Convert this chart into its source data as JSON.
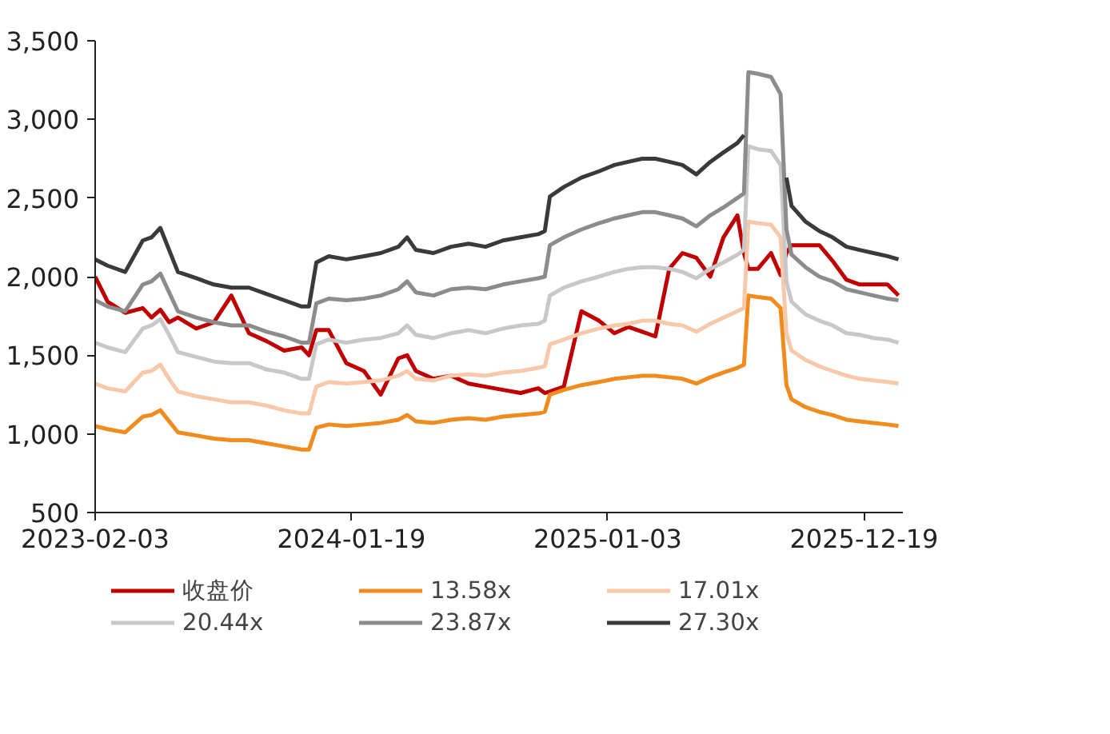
{
  "chart_data": {
    "type": "line",
    "x": [
      "2023-02-03",
      "2023-02-20",
      "2023-03-16",
      "2023-04-09",
      "2023-04-21",
      "2023-05-03",
      "2023-05-15",
      "2023-05-27",
      "2023-06-21",
      "2023-07-15",
      "2023-08-08",
      "2023-09-01",
      "2023-09-25",
      "2023-10-19",
      "2023-11-12",
      "2023-11-22",
      "2023-12-02",
      "2023-12-19",
      "2024-01-12",
      "2024-02-05",
      "2024-02-28",
      "2024-03-23",
      "2024-04-04",
      "2024-04-16",
      "2024-05-10",
      "2024-06-03",
      "2024-06-27",
      "2024-07-20",
      "2024-08-13",
      "2024-09-06",
      "2024-09-30",
      "2024-10-09",
      "2024-10-16",
      "2024-11-04",
      "2024-11-28",
      "2024-12-22",
      "2025-01-12",
      "2025-01-31",
      "2025-02-19",
      "2025-03-09",
      "2025-03-28",
      "2025-04-15",
      "2025-05-04",
      "2025-05-23",
      "2025-06-10",
      "2025-06-29",
      "2025-07-08",
      "2025-07-14",
      "2025-07-27",
      "2025-08-14",
      "2025-08-27",
      "2025-09-04",
      "2025-09-11",
      "2025-09-30",
      "2025-10-19",
      "2025-11-06",
      "2025-11-25",
      "2025-12-13",
      "2026-01-01",
      "2026-01-20",
      "2026-02-04"
    ],
    "series": [
      {
        "name": "收盘价",
        "color": "#c00000",
        "values": [
          2000,
          1840,
          1770,
          1800,
          1740,
          1790,
          1710,
          1740,
          1670,
          1710,
          1880,
          1640,
          1590,
          1530,
          1550,
          1500,
          1660,
          1660,
          1450,
          1400,
          1250,
          1480,
          1500,
          1400,
          1350,
          1370,
          1320,
          1300,
          1280,
          1260,
          1290,
          1260,
          1270,
          1300,
          1780,
          1720,
          1640,
          1680,
          1650,
          1620,
          2050,
          2150,
          2120,
          2000,
          2250,
          2390,
          2150,
          2050,
          2050,
          2150,
          2010,
          2150,
          2200,
          2200,
          2200,
          2100,
          1980,
          1950,
          1950,
          1950,
          1880
        ]
      },
      {
        "name": "13.58x",
        "color": "#f08c1e",
        "values": [
          1050,
          1030,
          1010,
          1110,
          1120,
          1150,
          1080,
          1010,
          990,
          970,
          960,
          960,
          940,
          920,
          900,
          900,
          1040,
          1060,
          1050,
          1060,
          1070,
          1090,
          1120,
          1080,
          1070,
          1090,
          1100,
          1090,
          1110,
          1120,
          1130,
          1140,
          1250,
          1280,
          1310,
          1330,
          1350,
          1360,
          1370,
          1370,
          1360,
          1350,
          1320,
          1360,
          1390,
          1420,
          1440,
          1880,
          1870,
          1860,
          1800,
          1310,
          1220,
          1170,
          1140,
          1120,
          1090,
          1080,
          1070,
          1060,
          1050
        ]
      },
      {
        "name": "17.01x",
        "color": "#f7c9aa",
        "values": [
          1320,
          1290,
          1270,
          1390,
          1400,
          1440,
          1350,
          1270,
          1240,
          1220,
          1200,
          1200,
          1180,
          1150,
          1130,
          1130,
          1300,
          1330,
          1320,
          1330,
          1340,
          1370,
          1400,
          1350,
          1340,
          1370,
          1380,
          1370,
          1390,
          1400,
          1420,
          1430,
          1570,
          1600,
          1640,
          1670,
          1690,
          1700,
          1720,
          1720,
          1700,
          1690,
          1650,
          1700,
          1740,
          1780,
          1800,
          2350,
          2340,
          2330,
          2250,
          1640,
          1530,
          1470,
          1430,
          1400,
          1370,
          1350,
          1340,
          1330,
          1320
        ]
      },
      {
        "name": "20.44x",
        "color": "#c8c8c8",
        "values": [
          1580,
          1550,
          1520,
          1670,
          1690,
          1730,
          1630,
          1520,
          1490,
          1460,
          1450,
          1450,
          1410,
          1390,
          1350,
          1350,
          1570,
          1600,
          1580,
          1600,
          1610,
          1640,
          1690,
          1630,
          1610,
          1640,
          1660,
          1640,
          1670,
          1690,
          1700,
          1720,
          1880,
          1930,
          1970,
          2000,
          2030,
          2050,
          2060,
          2060,
          2050,
          2030,
          1990,
          2050,
          2090,
          2140,
          2170,
          2830,
          2810,
          2800,
          2710,
          1970,
          1840,
          1760,
          1720,
          1690,
          1640,
          1630,
          1610,
          1600,
          1580
        ]
      },
      {
        "name": "23.87x",
        "color": "#8c8c8c",
        "values": [
          1850,
          1810,
          1780,
          1950,
          1970,
          2020,
          1900,
          1780,
          1740,
          1710,
          1690,
          1690,
          1650,
          1620,
          1580,
          1580,
          1830,
          1860,
          1850,
          1860,
          1880,
          1920,
          1970,
          1900,
          1880,
          1920,
          1930,
          1920,
          1950,
          1970,
          1990,
          2000,
          2200,
          2250,
          2300,
          2340,
          2370,
          2390,
          2410,
          2410,
          2390,
          2370,
          2320,
          2390,
          2440,
          2500,
          2530,
          3300,
          3290,
          3270,
          3160,
          2300,
          2140,
          2060,
          2000,
          1970,
          1920,
          1900,
          1880,
          1860,
          1850
        ]
      },
      {
        "name": "27.30x",
        "color": "#3a3a3a",
        "values": [
          2110,
          2070,
          2030,
          2230,
          2250,
          2310,
          2170,
          2030,
          1990,
          1950,
          1930,
          1930,
          1890,
          1850,
          1810,
          1810,
          2090,
          2130,
          2110,
          2130,
          2150,
          2190,
          2250,
          2170,
          2150,
          2190,
          2210,
          2190,
          2230,
          2250,
          2270,
          2290,
          2510,
          2570,
          2630,
          2670,
          2710,
          2730,
          2750,
          2750,
          2730,
          2710,
          2650,
          2730,
          2790,
          2850,
          2900,
          null,
          null,
          null,
          null,
          2630,
          2450,
          2350,
          2290,
          2250,
          2190,
          2170,
          2150,
          2130,
          2110
        ]
      }
    ],
    "xlim": [
      "2023-02-03",
      "2026-02-10"
    ],
    "xticks": [
      "2023-02-03",
      "2024-01-19",
      "2025-01-03",
      "2025-12-19"
    ],
    "ylim": [
      500,
      3500
    ],
    "yticks": [
      500,
      {
        "value": 1000,
        "label": "1,000"
      },
      {
        "value": 1500,
        "label": "1,500"
      },
      {
        "value": 2000,
        "label": "2,000"
      },
      {
        "value": 2500,
        "label": "2,500"
      },
      {
        "value": 3000,
        "label": "3,000"
      },
      {
        "value": 3500,
        "label": "3,500"
      }
    ],
    "grid": false,
    "legend": "bottom",
    "marker": "none",
    "line_style": "solid"
  }
}
